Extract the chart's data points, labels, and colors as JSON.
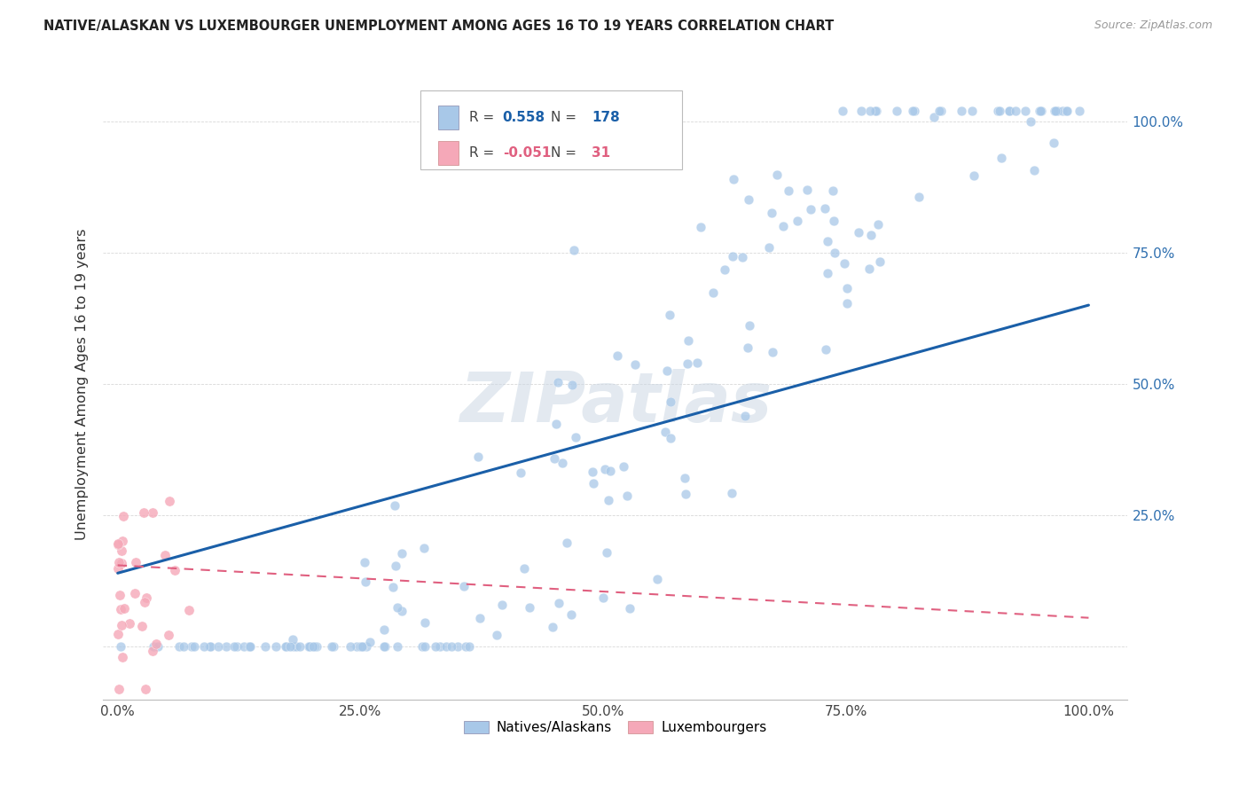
{
  "title": "NATIVE/ALASKAN VS LUXEMBOURGER UNEMPLOYMENT AMONG AGES 16 TO 19 YEARS CORRELATION CHART",
  "source": "Source: ZipAtlas.com",
  "ylabel": "Unemployment Among Ages 16 to 19 years",
  "r_native": 0.558,
  "n_native": 178,
  "r_luxembourger": -0.051,
  "n_luxembourger": 31,
  "native_color": "#a8c8e8",
  "luxembourger_color": "#f5a8b8",
  "native_line_color": "#1a5fa8",
  "luxembourger_line_color": "#e06080",
  "watermark": "ZIPatlas",
  "watermark_color": "#ccd8e4",
  "background_color": "#ffffff",
  "grid_color": "#d8d8d8",
  "x_ticks": [
    0.0,
    0.25,
    0.5,
    0.75,
    1.0
  ],
  "x_tick_labels": [
    "0.0%",
    "25.0%",
    "50.0%",
    "75.0%",
    "100.0%"
  ],
  "y_ticks": [
    0.0,
    0.25,
    0.5,
    0.75,
    1.0
  ],
  "y_tick_labels_right": [
    "",
    "25.0%",
    "50.0%",
    "75.0%",
    "100.0%"
  ],
  "native_line_start_y": 0.14,
  "native_line_end_y": 0.65,
  "lux_line_start_y": 0.155,
  "lux_line_end_y": 0.055
}
